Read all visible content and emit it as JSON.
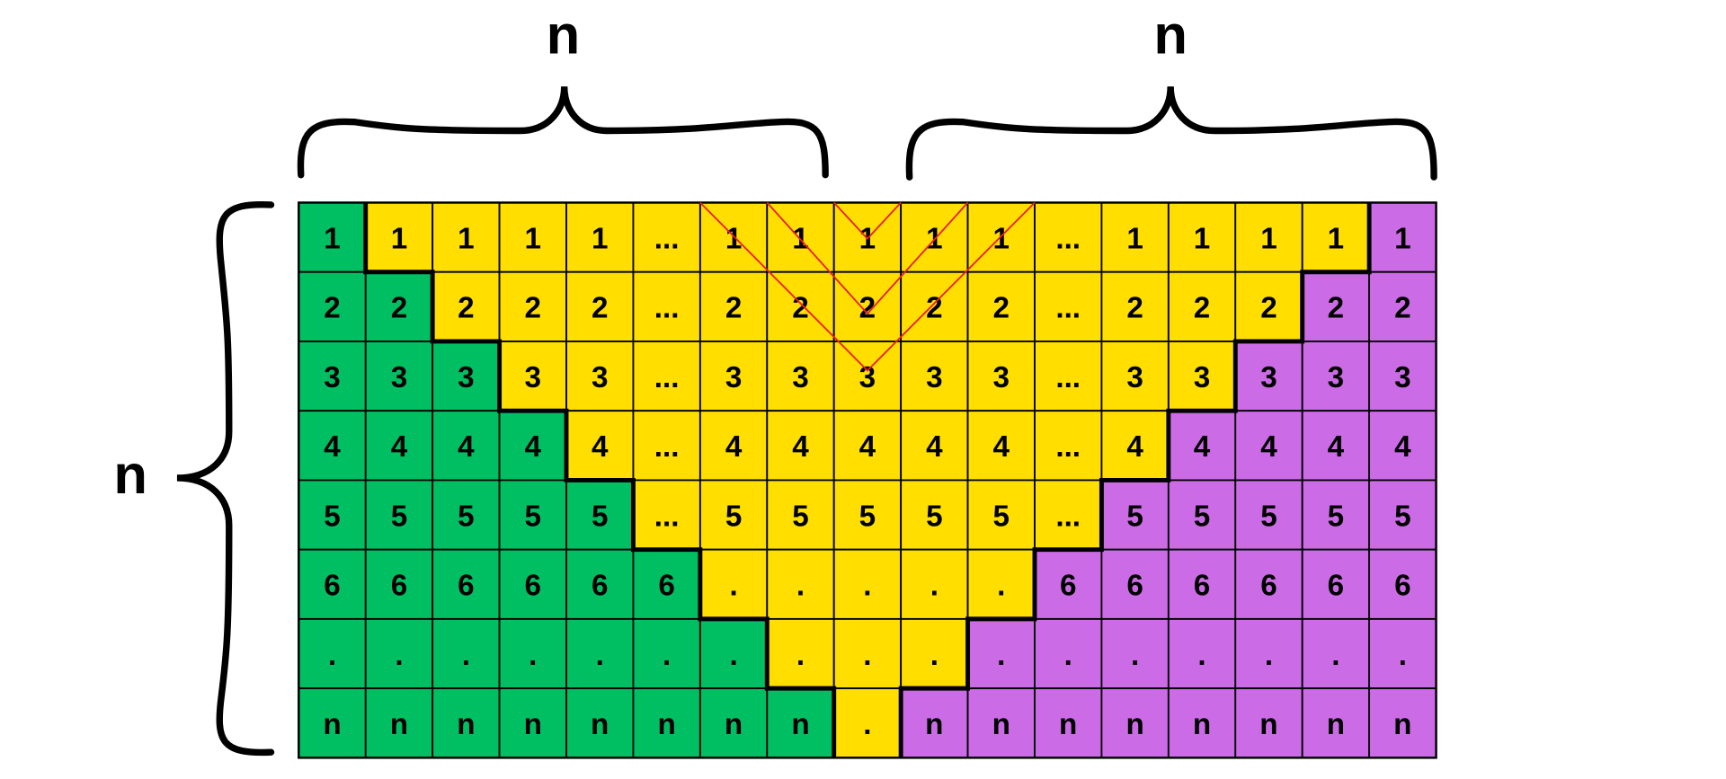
{
  "labels": {
    "top_left": "n",
    "top_right": "n",
    "left": "n"
  },
  "colors": {
    "G": "#00BF63",
    "Y": "#FFDE00",
    "P": "#CB6CE6",
    "grid_line": "#000000",
    "red_line": "#E8202A"
  },
  "grid": {
    "rows": [
      {
        "cells": [
          "1",
          "1",
          "1",
          "1",
          "1",
          "...",
          "1",
          "1",
          "1",
          "1",
          "1",
          "...",
          "1",
          "1",
          "1",
          "1",
          "1"
        ],
        "colors": "GYYYYYYYYYYYYYYYP"
      },
      {
        "cells": [
          "2",
          "2",
          "2",
          "2",
          "2",
          "...",
          "2",
          "2",
          "2",
          "2",
          "2",
          "...",
          "2",
          "2",
          "2",
          "2",
          "2"
        ],
        "colors": "GGYYYYYYYYYYYYYPP"
      },
      {
        "cells": [
          "3",
          "3",
          "3",
          "3",
          "3",
          "...",
          "3",
          "3",
          "3",
          "3",
          "3",
          "...",
          "3",
          "3",
          "3",
          "3",
          "3"
        ],
        "colors": "GGGYYYYYYYYYYYPPP"
      },
      {
        "cells": [
          "4",
          "4",
          "4",
          "4",
          "4",
          "...",
          "4",
          "4",
          "4",
          "4",
          "4",
          "...",
          "4",
          "4",
          "4",
          "4",
          "4"
        ],
        "colors": "GGGGYYYYYYYYYPPPP"
      },
      {
        "cells": [
          "5",
          "5",
          "5",
          "5",
          "5",
          "...",
          "5",
          "5",
          "5",
          "5",
          "5",
          "...",
          "5",
          "5",
          "5",
          "5",
          "5"
        ],
        "colors": "GGGGGYYYYYYYPPPPP"
      },
      {
        "cells": [
          "6",
          "6",
          "6",
          "6",
          "6",
          "6",
          ".",
          ".",
          ".",
          ".",
          ".",
          "6",
          "6",
          "6",
          "6",
          "6",
          "6"
        ],
        "colors": "GGGGGGYYYYYPPPPPP"
      },
      {
        "cells": [
          ".",
          ".",
          ".",
          ".",
          ".",
          ".",
          ".",
          ".",
          ".",
          ".",
          ".",
          ".",
          ".",
          ".",
          ".",
          ".",
          "."
        ],
        "colors": "GGGGGGGYYYPPPPPPP"
      },
      {
        "cells": [
          "n",
          "n",
          "n",
          "n",
          "n",
          "n",
          "n",
          "n",
          ".",
          "n",
          "n",
          "n",
          "n",
          "n",
          "n",
          "n",
          "n"
        ],
        "colors": "GGGGGGGGYPPPPPPPP"
      }
    ]
  }
}
